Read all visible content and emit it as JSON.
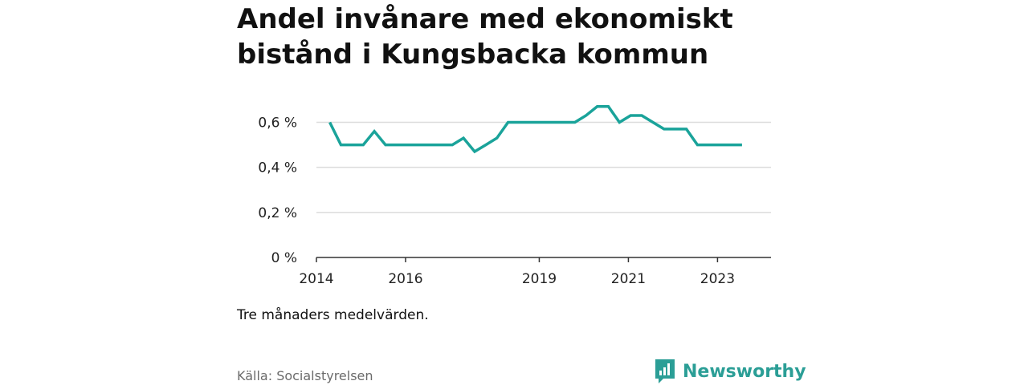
{
  "title": "Andel invånare med ekonomiskt bistånd i Kungsbacka kommun",
  "note": "Tre månaders medelvärden.",
  "source": "Källa: Socialstyrelsen",
  "brand": {
    "name": "Newsworthy",
    "icon": "newsworthy-logo-icon",
    "color": "#2b9e96"
  },
  "chart_data": {
    "type": "line",
    "title": "Andel invånare med ekonomiskt bistånd i Kungsbacka kommun",
    "xlabel": "",
    "ylabel": "",
    "x_tick_values": [
      2014,
      2016,
      2019,
      2021,
      2023
    ],
    "x_tick_labels": [
      "2014",
      "2016",
      "2019",
      "2021",
      "2023"
    ],
    "y_tick_values": [
      0,
      0.2,
      0.4,
      0.6
    ],
    "y_tick_labels": [
      "0 %",
      "0,2 %",
      "0,4 %",
      "0,6 %"
    ],
    "xlim": [
      2014,
      2024.2
    ],
    "ylim": [
      0,
      0.68
    ],
    "grid": true,
    "legend": "none",
    "series": [
      {
        "color": "#1aa39a",
        "x": [
          2014.3,
          2014.55,
          2014.8,
          2015.05,
          2015.3,
          2015.55,
          2015.8,
          2016.05,
          2016.3,
          2016.55,
          2016.8,
          2017.05,
          2017.3,
          2017.55,
          2017.8,
          2018.05,
          2018.3,
          2018.55,
          2018.8,
          2019.05,
          2019.3,
          2019.55,
          2019.8,
          2020.05,
          2020.3,
          2020.55,
          2020.8,
          2021.05,
          2021.3,
          2021.55,
          2021.8,
          2022.05,
          2022.3,
          2022.55,
          2022.8,
          2023.05,
          2023.3,
          2023.55
        ],
        "y": [
          0.6,
          0.5,
          0.5,
          0.5,
          0.56,
          0.5,
          0.5,
          0.5,
          0.5,
          0.5,
          0.5,
          0.5,
          0.53,
          0.47,
          0.5,
          0.53,
          0.6,
          0.6,
          0.6,
          0.6,
          0.6,
          0.6,
          0.6,
          0.63,
          0.67,
          0.67,
          0.6,
          0.63,
          0.63,
          0.6,
          0.57,
          0.57,
          0.57,
          0.5,
          0.5,
          0.5,
          0.5,
          0.5
        ]
      }
    ]
  }
}
